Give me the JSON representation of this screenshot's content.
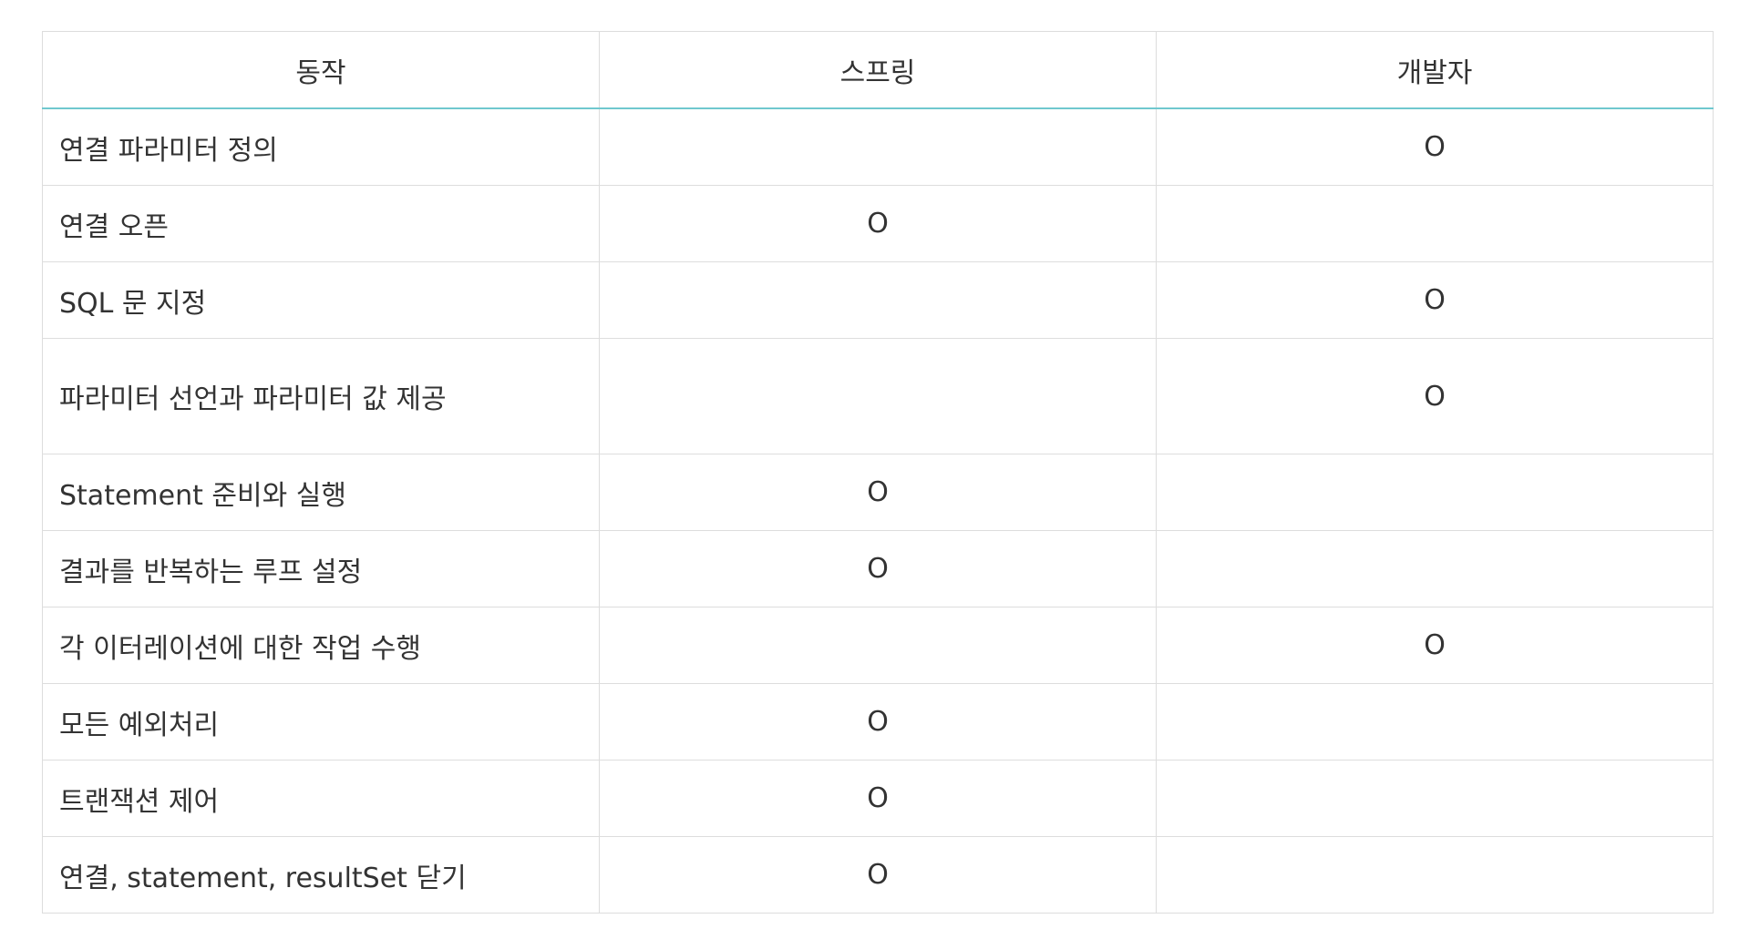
{
  "table": {
    "headers": [
      "동작",
      "스프링",
      "개발자"
    ],
    "rows": [
      {
        "action": "연결 파라미터 정의",
        "spring": "",
        "developer": "O"
      },
      {
        "action": "연결 오픈",
        "spring": "O",
        "developer": ""
      },
      {
        "action": "SQL 문 지정",
        "spring": "",
        "developer": "O"
      },
      {
        "action": "파라미터 선언과 파라미터 값 제공",
        "spring": "",
        "developer": "O"
      },
      {
        "action": "Statement 준비와 실행",
        "spring": "O",
        "developer": ""
      },
      {
        "action": "결과를 반복하는 루프 설정",
        "spring": "O",
        "developer": ""
      },
      {
        "action": "각 이터레이션에 대한 작업 수행",
        "spring": "",
        "developer": "O"
      },
      {
        "action": "모든 예외처리",
        "spring": "O",
        "developer": ""
      },
      {
        "action": "트랜잭션 제어",
        "spring": "O",
        "developer": ""
      },
      {
        "action": "연결, statement, resultSet 닫기",
        "spring": "O",
        "developer": ""
      }
    ]
  },
  "colors": {
    "header_underline": "#70c8cf",
    "border": "#dddddd",
    "text": "#333333"
  }
}
